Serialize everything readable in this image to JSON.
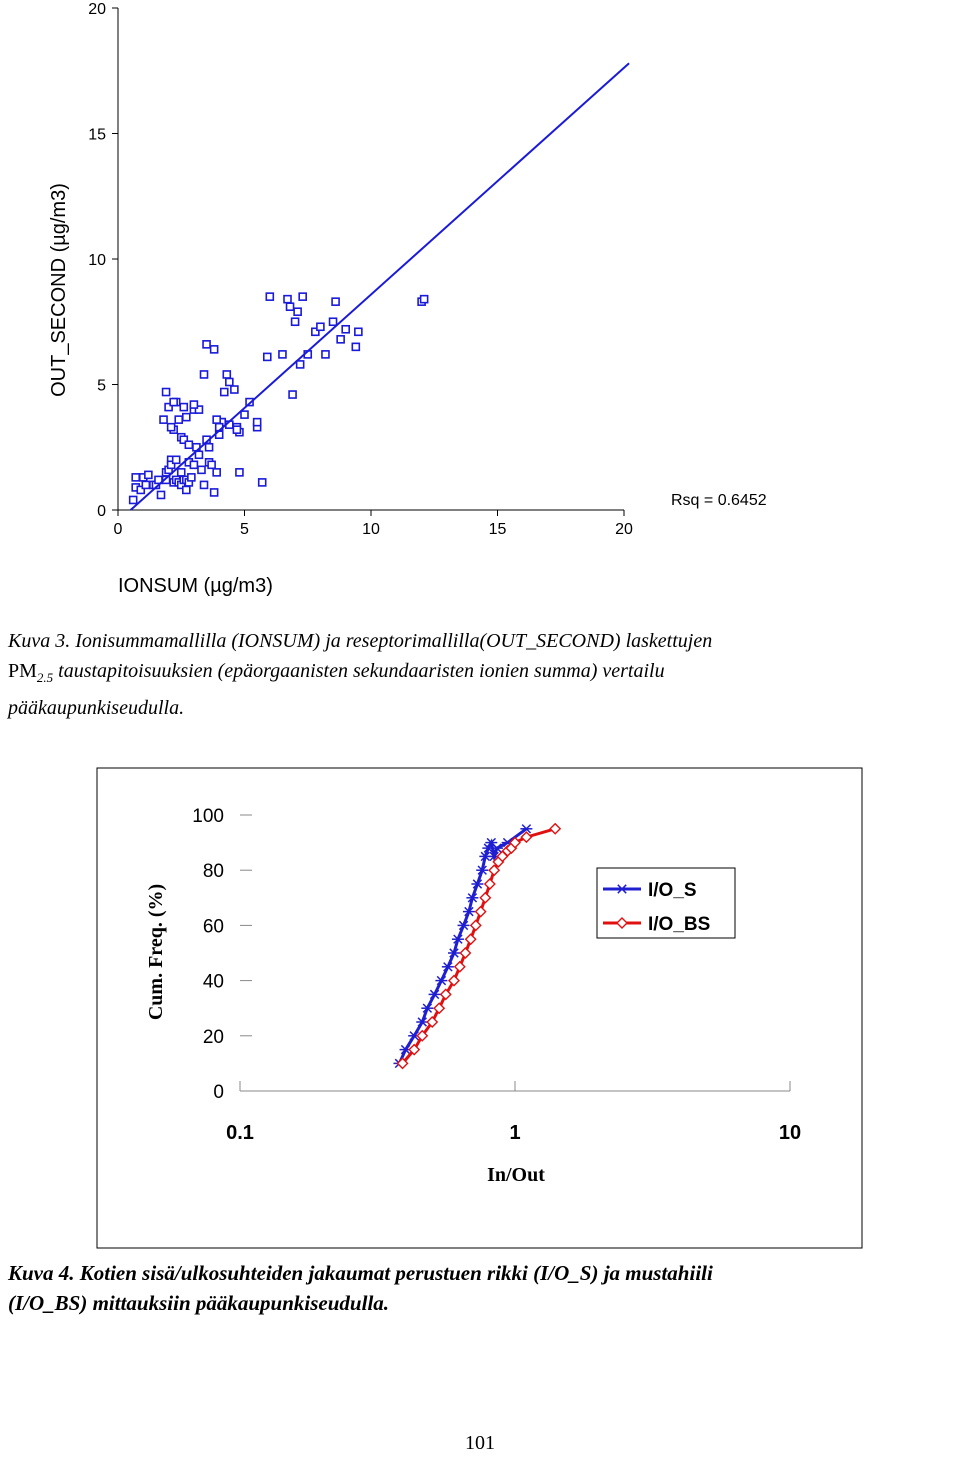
{
  "chart_data": [
    {
      "type": "scatter",
      "title": "",
      "xlabel": "IONSUM (µg/m3)",
      "ylabel": "OUT_SECOND (µg/m3)",
      "xlim": [
        0,
        20
      ],
      "ylim": [
        0,
        20
      ],
      "xticks": [
        "0",
        "5",
        "10",
        "15",
        "20"
      ],
      "yticks": [
        "0",
        "5",
        "10",
        "15",
        "20"
      ],
      "annotation": "Rsq = 0.6452",
      "fit_line": {
        "x": [
          0.5,
          20.2
        ],
        "y": [
          0.0,
          17.8
        ]
      },
      "x": [
        0.6,
        0.7,
        0.7,
        0.9,
        1.0,
        1.1,
        1.2,
        1.4,
        1.5,
        1.6,
        1.7,
        1.9,
        1.9,
        2.0,
        2.1,
        2.1,
        2.2,
        2.3,
        2.3,
        2.4,
        2.5,
        2.5,
        2.6,
        2.7,
        2.7,
        2.8,
        2.8,
        2.9,
        3.0,
        3.1,
        3.2,
        3.3,
        3.4,
        3.5,
        3.6,
        3.7,
        3.8,
        3.9,
        4.0,
        4.1,
        4.2,
        4.3,
        4.4,
        4.6,
        4.7,
        4.8,
        5.0,
        5.2,
        5.5,
        5.7,
        1.8,
        2.0,
        2.2,
        2.3,
        2.5,
        2.6,
        2.8,
        3.0,
        3.2,
        3.4,
        3.5,
        3.8,
        4.1,
        4.8,
        2.1,
        2.4,
        2.7,
        1.9,
        2.2,
        2.6,
        3.0,
        3.6,
        3.9,
        4.0,
        4.4,
        4.7,
        5.5,
        5.9,
        6.5,
        6.7,
        6.8,
        7.0,
        7.1,
        7.3,
        7.5,
        7.8,
        8.0,
        8.2,
        8.5,
        8.6,
        8.8,
        9.0,
        9.4,
        9.5,
        12.0,
        12.1,
        6.0,
        6.9,
        7.2
      ],
      "y": [
        0.4,
        1.3,
        0.9,
        0.8,
        1.3,
        1.0,
        1.4,
        1.0,
        1.0,
        1.2,
        0.6,
        1.5,
        1.2,
        1.6,
        2.0,
        1.8,
        1.1,
        1.2,
        2.0,
        1.1,
        1.5,
        1.0,
        1.2,
        0.8,
        1.2,
        1.9,
        1.1,
        1.3,
        1.8,
        2.5,
        2.2,
        1.6,
        1.0,
        2.8,
        1.9,
        1.8,
        0.7,
        1.5,
        3.0,
        3.5,
        4.7,
        5.4,
        5.1,
        4.8,
        3.3,
        3.1,
        3.8,
        4.3,
        3.3,
        1.1,
        3.6,
        4.1,
        3.2,
        4.3,
        2.9,
        2.8,
        2.6,
        4.0,
        4.0,
        5.4,
        6.6,
        6.4,
        3.5,
        1.5,
        3.3,
        3.6,
        3.7,
        4.7,
        4.3,
        4.1,
        4.2,
        2.5,
        3.6,
        3.3,
        3.4,
        3.2,
        3.5,
        6.1,
        6.2,
        8.4,
        8.1,
        7.5,
        7.9,
        8.5,
        6.2,
        7.1,
        7.3,
        6.2,
        7.5,
        8.3,
        6.8,
        7.2,
        6.5,
        7.1,
        8.3,
        8.4,
        8.5,
        4.6,
        5.8
      ]
    },
    {
      "type": "line",
      "title": "",
      "xlabel": "In/Out",
      "ylabel": "Cum. Freq. (%)",
      "xscale": "log",
      "xlim": [
        0.1,
        10
      ],
      "ylim": [
        0,
        100
      ],
      "xticks": [
        "0.1",
        "1",
        "10"
      ],
      "yticks": [
        "0",
        "20",
        "40",
        "60",
        "80",
        "100"
      ],
      "legend_position": "right",
      "series": [
        {
          "name": "I/O_S",
          "color": "#1f1fd0",
          "marker": "asterisk",
          "x": [
            0.38,
            0.4,
            0.43,
            0.46,
            0.48,
            0.51,
            0.54,
            0.57,
            0.6,
            0.62,
            0.65,
            0.68,
            0.7,
            0.73,
            0.76,
            0.78,
            0.8,
            0.82,
            0.84,
            0.86,
            0.94,
            1.1
          ],
          "y": [
            10,
            15,
            20,
            25,
            30,
            35,
            40,
            45,
            50,
            55,
            60,
            65,
            70,
            75,
            80,
            85,
            88,
            90,
            85,
            88,
            90,
            95
          ]
        },
        {
          "name": "I/O_BS",
          "color": "#e01010",
          "marker": "diamond",
          "x": [
            0.39,
            0.43,
            0.46,
            0.5,
            0.53,
            0.56,
            0.6,
            0.63,
            0.66,
            0.69,
            0.72,
            0.75,
            0.78,
            0.81,
            0.84,
            0.87,
            0.9,
            0.94,
            0.97,
            1.0,
            1.1,
            1.4
          ],
          "y": [
            10,
            15,
            20,
            25,
            30,
            35,
            40,
            45,
            50,
            55,
            60,
            65,
            70,
            75,
            80,
            83,
            85,
            87,
            88,
            90,
            92,
            95
          ]
        }
      ]
    }
  ],
  "captions": {
    "kuva3": {
      "line1": "Kuva 3. Ionisummamallilla (IONSUM) ja reseptorimallilla(OUT_SECOND) laskettujen",
      "pm": "PM",
      "pm_sub": "2.5",
      "line2": " taustapitoisuuksien (epäorgaanisten sekundaaristen ionien summa) vertailu",
      "line3": "pääkaupunkiseudulla."
    },
    "kuva4": {
      "line1": "Kuva 4. Kotien sisä/ulkosuhteiden jakaumat perustuen rikki (I/O_S) ja mustahiili",
      "line2": "(I/O_BS) mittauksiin pääkaupunkiseudulla."
    }
  },
  "page_number": "101"
}
